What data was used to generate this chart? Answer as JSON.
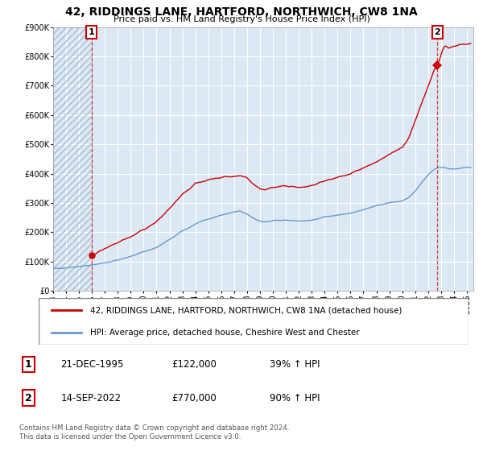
{
  "title": "42, RIDDINGS LANE, HARTFORD, NORTHWICH, CW8 1NA",
  "subtitle": "Price paid vs. HM Land Registry's House Price Index (HPI)",
  "red_label": "42, RIDDINGS LANE, HARTFORD, NORTHWICH, CW8 1NA (detached house)",
  "blue_label": "HPI: Average price, detached house, Cheshire West and Chester",
  "point1_date": "21-DEC-1995",
  "point1_price": "£122,000",
  "point1_hpi": "39% ↑ HPI",
  "point2_date": "14-SEP-2022",
  "point2_price": "£770,000",
  "point2_hpi": "90% ↑ HPI",
  "footnote": "Contains HM Land Registry data © Crown copyright and database right 2024.\nThis data is licensed under the Open Government Licence v3.0.",
  "point1_year": 1995.97,
  "point1_value": 122000,
  "point2_year": 2022.71,
  "point2_value": 770000,
  "ylim": [
    0,
    900000
  ],
  "xlim_start": 1993,
  "xlim_end": 2025.5,
  "hatch_end_year": 1995.97,
  "red_color": "#cc0000",
  "blue_color": "#6699cc",
  "chart_bg_color": "#dce9f5",
  "background_color": "#ffffff",
  "grid_color": "#ffffff",
  "hatch_color": "#aabbcc"
}
